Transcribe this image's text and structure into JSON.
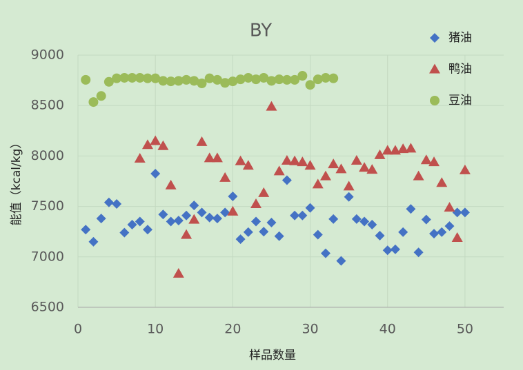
{
  "chart_data": {
    "type": "scatter",
    "title": "BY",
    "x_label": "样品数量",
    "y_label": "能值（kcal/kg）",
    "xlim": [
      0,
      55
    ],
    "ylim": [
      6500,
      9000
    ],
    "xticks": [
      0,
      10,
      20,
      30,
      40,
      50
    ],
    "yticks": [
      6500,
      7000,
      7500,
      8000,
      8500,
      9000
    ],
    "grid": true,
    "legend": "top-right",
    "series": [
      {
        "name": "猪油",
        "color": "#4472c4",
        "marker": "diamond",
        "x": [
          1,
          2,
          3,
          4,
          5,
          6,
          7,
          8,
          9,
          10,
          11,
          12,
          13,
          14,
          15,
          16,
          17,
          18,
          19,
          20,
          21,
          22,
          23,
          24,
          25,
          26,
          27,
          28,
          29,
          30,
          31,
          32,
          33,
          34,
          35,
          36,
          37,
          38,
          39,
          40,
          41,
          42,
          43,
          44,
          45,
          46,
          47,
          48,
          49,
          50
        ],
        "values": [
          7270,
          7150,
          7380,
          7540,
          7525,
          7240,
          7320,
          7350,
          7270,
          7825,
          7420,
          7350,
          7360,
          7410,
          7510,
          7440,
          7390,
          7380,
          7440,
          7600,
          7175,
          7245,
          7350,
          7250,
          7340,
          7205,
          7760,
          7410,
          7410,
          7485,
          7220,
          7035,
          7375,
          6960,
          7595,
          7375,
          7350,
          7320,
          7210,
          7065,
          7075,
          7245,
          7475,
          7045,
          7370,
          7230,
          7245,
          7305,
          7440,
          7440
        ]
      },
      {
        "name": "鸭油",
        "color": "#c0504d",
        "marker": "triangle",
        "x": [
          8,
          9,
          10,
          11,
          12,
          13,
          14,
          15,
          16,
          17,
          18,
          19,
          20,
          21,
          22,
          23,
          24,
          25,
          26,
          27,
          28,
          29,
          30,
          31,
          32,
          33,
          34,
          35,
          36,
          37,
          38,
          39,
          40,
          41,
          42,
          43,
          44,
          45,
          46,
          47,
          48,
          49,
          50
        ],
        "values": [
          7975,
          8110,
          8150,
          8100,
          7710,
          6835,
          7220,
          7370,
          8140,
          7980,
          7980,
          7785,
          7450,
          7950,
          7905,
          7525,
          7635,
          8490,
          7850,
          7955,
          7950,
          7940,
          7905,
          7720,
          7800,
          7920,
          7870,
          7700,
          7955,
          7885,
          7865,
          8010,
          8055,
          8055,
          8070,
          8075,
          7800,
          7960,
          7940,
          7735,
          7490,
          7190,
          7860
        ]
      },
      {
        "name": "豆油",
        "color": "#9bbb59",
        "marker": "circle",
        "x": [
          1,
          2,
          3,
          4,
          5,
          6,
          7,
          8,
          9,
          10,
          11,
          12,
          13,
          14,
          15,
          16,
          17,
          18,
          19,
          20,
          21,
          22,
          23,
          24,
          25,
          26,
          27,
          28,
          29,
          30,
          31,
          32,
          33
        ],
        "values": [
          8755,
          8535,
          8595,
          8735,
          8770,
          8775,
          8775,
          8775,
          8770,
          8770,
          8745,
          8740,
          8745,
          8755,
          8745,
          8720,
          8770,
          8755,
          8725,
          8740,
          8760,
          8775,
          8760,
          8775,
          8745,
          8760,
          8755,
          8755,
          8795,
          8705,
          8760,
          8775,
          8770
        ]
      }
    ]
  }
}
